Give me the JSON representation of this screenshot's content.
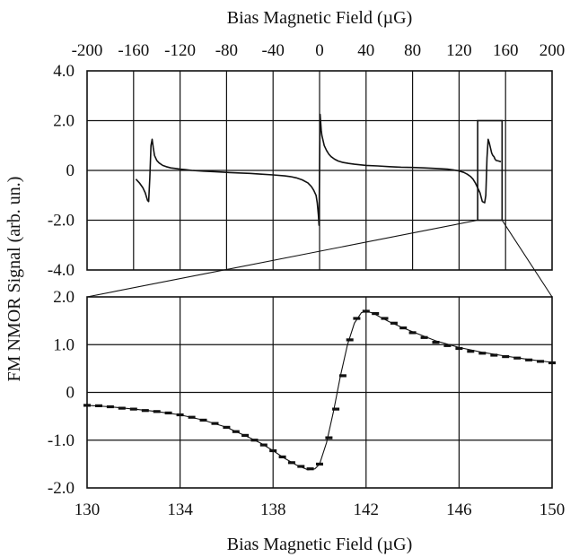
{
  "figure": {
    "top_xlabel": "Bias Magnetic Field (µG)",
    "bottom_xlabel": "Bias Magnetic Field (µG)",
    "ylabel": "FM NMOR Signal  (arb. un.)"
  },
  "chart_data": [
    {
      "type": "line",
      "panel": "top",
      "xlabel": "Bias Magnetic Field (µG)",
      "ylabel": "FM NMOR Signal  (arb. un.)",
      "xlim": [
        -200,
        200
      ],
      "ylim": [
        -4.0,
        4.0
      ],
      "x_ticks": [
        -200,
        -160,
        -120,
        -80,
        -40,
        0,
        40,
        80,
        120,
        160,
        200
      ],
      "x_tick_labels": [
        "-200",
        "-160",
        "-120",
        "-80",
        "-40",
        "0",
        "40",
        "80",
        "120",
        "160",
        "200"
      ],
      "y_ticks": [
        4,
        2,
        0,
        -2,
        -4
      ],
      "y_tick_labels": [
        "4.0",
        "2.0",
        "0",
        "-2.0",
        "-4.0"
      ],
      "x_axis_position": "top",
      "grid": true,
      "series": [
        {
          "x": [
            -158,
            -155,
            -152,
            -150,
            -148,
            -147,
            -146,
            -145,
            -144,
            -143,
            -142,
            -140,
            -138,
            -135,
            -132,
            -128,
            -124,
            -120,
            -115,
            -110,
            -100,
            -90,
            -80,
            -70,
            -60,
            -50,
            -40,
            -30,
            -25,
            -20,
            -15,
            -10,
            -7,
            -5,
            -3,
            -2,
            -1,
            -0.5,
            0,
            0.5,
            1,
            1.5,
            2,
            3,
            4,
            6,
            8,
            10,
            13,
            16,
            20,
            25,
            30,
            40,
            50,
            60,
            70,
            80,
            90,
            100,
            110,
            115,
            120,
            124,
            127,
            130,
            132,
            134,
            136,
            138,
            140,
            142,
            143,
            144,
            145,
            146,
            147,
            148,
            149,
            150,
            151,
            152,
            154,
            156
          ],
          "y": [
            -0.35,
            -0.5,
            -0.7,
            -0.9,
            -1.2,
            -1.25,
            -0.3,
            1.0,
            1.25,
            0.9,
            0.6,
            0.4,
            0.3,
            0.2,
            0.15,
            0.1,
            0.08,
            0.05,
            0.03,
            0.0,
            -0.03,
            -0.05,
            -0.08,
            -0.1,
            -0.12,
            -0.15,
            -0.18,
            -0.22,
            -0.25,
            -0.3,
            -0.38,
            -0.5,
            -0.65,
            -0.8,
            -1.0,
            -1.3,
            -1.8,
            -2.2,
            0.2,
            2.25,
            1.9,
            1.6,
            1.4,
            1.2,
            1.0,
            0.8,
            0.65,
            0.55,
            0.45,
            0.38,
            0.32,
            0.28,
            0.25,
            0.2,
            0.18,
            0.15,
            0.13,
            0.12,
            0.1,
            0.08,
            0.05,
            0.02,
            -0.02,
            -0.08,
            -0.15,
            -0.25,
            -0.35,
            -0.5,
            -0.7,
            -0.9,
            -1.25,
            -1.3,
            -1.0,
            0.5,
            1.25,
            1.1,
            0.9,
            0.7,
            0.6,
            0.55,
            0.45,
            0.4,
            0.38,
            0.35
          ]
        }
      ],
      "annotations": [
        {
          "type": "box",
          "x_range": [
            136,
            157
          ],
          "y_range": [
            -2.0,
            2.0
          ]
        }
      ]
    },
    {
      "type": "scatter",
      "panel": "bottom",
      "xlabel": "Bias Magnetic Field (µG)",
      "ylabel": "FM NMOR Signal  (arb. un.)",
      "xlim": [
        130,
        150
      ],
      "ylim": [
        -2.0,
        2.0
      ],
      "x_ticks": [
        130,
        134,
        138,
        142,
        146,
        150
      ],
      "x_tick_labels": [
        "130",
        "134",
        "138",
        "142",
        "146",
        "150"
      ],
      "y_ticks": [
        2,
        1,
        0,
        -1,
        -2
      ],
      "y_tick_labels": [
        "2.0",
        "1.0",
        "0",
        "-1.0",
        "-2.0"
      ],
      "grid": true,
      "series": [
        {
          "x": [
            130,
            130.5,
            131,
            131.5,
            132,
            132.5,
            133,
            133.5,
            134,
            134.5,
            135,
            135.5,
            136,
            136.4,
            136.8,
            137.2,
            137.6,
            138,
            138.4,
            138.8,
            139.2,
            139.6,
            140,
            140.4,
            140.7,
            141,
            141.3,
            141.6,
            142,
            142.4,
            142.8,
            143.2,
            143.6,
            144,
            144.5,
            145,
            145.5,
            146,
            146.5,
            147,
            147.5,
            148,
            148.5,
            149,
            149.5,
            150
          ],
          "y": [
            -0.27,
            -0.28,
            -0.3,
            -0.33,
            -0.35,
            -0.38,
            -0.4,
            -0.43,
            -0.47,
            -0.52,
            -0.58,
            -0.65,
            -0.73,
            -0.82,
            -0.9,
            -1.0,
            -1.1,
            -1.22,
            -1.35,
            -1.47,
            -1.55,
            -1.6,
            -1.5,
            -0.95,
            -0.35,
            0.35,
            1.1,
            1.55,
            1.7,
            1.65,
            1.55,
            1.45,
            1.35,
            1.25,
            1.15,
            1.05,
            0.98,
            0.92,
            0.86,
            0.82,
            0.78,
            0.75,
            0.72,
            0.68,
            0.65,
            0.62
          ]
        }
      ],
      "fit": {
        "x": [
          130,
          131,
          132,
          133,
          134,
          135,
          136,
          137,
          137.5,
          138,
          138.5,
          139,
          139.5,
          139.8,
          140,
          140.3,
          140.6,
          140.9,
          141.2,
          141.5,
          141.8,
          142,
          142.3,
          142.6,
          143,
          143.5,
          144,
          145,
          146,
          147,
          148,
          149,
          150
        ],
        "y": [
          -0.27,
          -0.3,
          -0.35,
          -0.4,
          -0.47,
          -0.58,
          -0.73,
          -0.95,
          -1.07,
          -1.22,
          -1.38,
          -1.52,
          -1.62,
          -1.6,
          -1.5,
          -1.05,
          -0.4,
          0.35,
          1.0,
          1.45,
          1.67,
          1.7,
          1.66,
          1.58,
          1.48,
          1.37,
          1.27,
          1.08,
          0.94,
          0.84,
          0.76,
          0.69,
          0.63
        ]
      }
    }
  ]
}
